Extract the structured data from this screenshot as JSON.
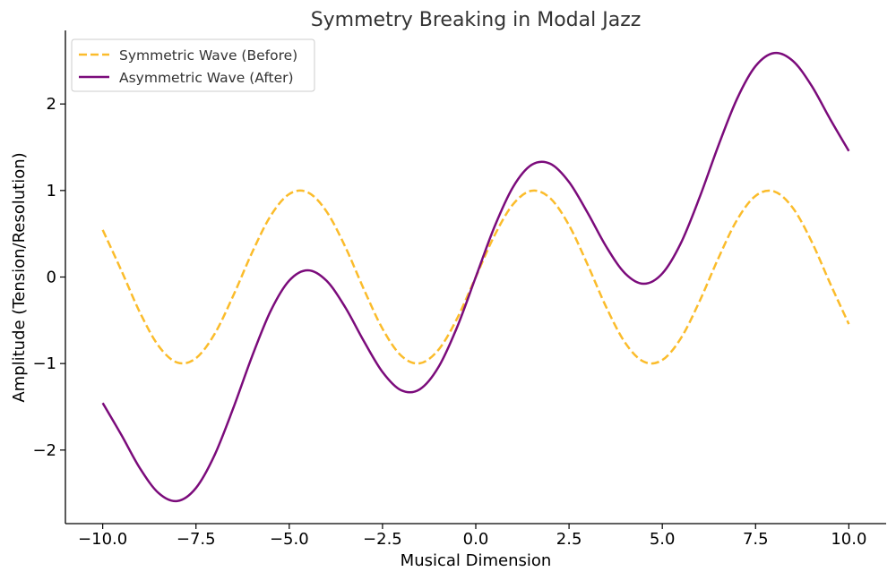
{
  "chart_data": {
    "type": "line",
    "title": "Symmetry Breaking in Modal Jazz",
    "xlabel": "Musical Dimension",
    "ylabel": "Amplitude (Tension/Resolution)",
    "xlim": [
      -11.0,
      11.0
    ],
    "ylim": [
      -2.85,
      2.85
    ],
    "xticks": [
      -10.0,
      -7.5,
      -5.0,
      -2.5,
      0.0,
      2.5,
      5.0,
      7.5,
      10.0
    ],
    "xtick_labels": [
      "−10.0",
      "−7.5",
      "−5.0",
      "−2.5",
      "0.0",
      "2.5",
      "5.0",
      "7.5",
      "10.0"
    ],
    "yticks": [
      -2,
      -1,
      0,
      1,
      2
    ],
    "ytick_labels": [
      "−2",
      "−1",
      "0",
      "1",
      "2"
    ],
    "grid": false,
    "legend_position": "top-left",
    "series": [
      {
        "name": "Symmetric Wave (Before)",
        "color": "#FBBC2B",
        "style": "dashed",
        "x": [
          -10.0,
          -9.5,
          -9.0,
          -8.5,
          -8.0,
          -7.5,
          -7.0,
          -6.5,
          -6.0,
          -5.5,
          -5.0,
          -4.5,
          -4.0,
          -3.5,
          -3.0,
          -2.5,
          -2.0,
          -1.5,
          -1.0,
          -0.5,
          0.0,
          0.5,
          1.0,
          1.5,
          2.0,
          2.5,
          3.0,
          3.5,
          4.0,
          4.5,
          5.0,
          5.5,
          6.0,
          6.5,
          7.0,
          7.5,
          8.0,
          8.5,
          9.0,
          9.5,
          10.0
        ],
        "values": [
          0.544,
          0.075,
          -0.412,
          -0.798,
          -0.989,
          -0.938,
          -0.657,
          -0.215,
          0.279,
          0.706,
          0.959,
          0.978,
          0.757,
          0.351,
          -0.141,
          -0.598,
          -0.909,
          -0.997,
          -0.841,
          -0.479,
          0.0,
          0.479,
          0.841,
          0.997,
          0.909,
          0.598,
          0.141,
          -0.351,
          -0.757,
          -0.978,
          -0.959,
          -0.706,
          -0.279,
          0.215,
          0.657,
          0.938,
          0.989,
          0.798,
          0.412,
          -0.075,
          -0.544
        ]
      },
      {
        "name": "Asymmetric Wave (After)",
        "color": "#7B0B7B",
        "style": "solid",
        "x": [
          -10.0,
          -9.5,
          -9.0,
          -8.5,
          -8.0,
          -7.5,
          -7.0,
          -6.5,
          -6.0,
          -5.5,
          -5.0,
          -4.5,
          -4.0,
          -3.5,
          -3.0,
          -2.5,
          -2.0,
          -1.5,
          -1.0,
          -0.5,
          0.0,
          0.5,
          1.0,
          1.5,
          2.0,
          2.5,
          3.0,
          3.5,
          4.0,
          4.5,
          5.0,
          5.5,
          6.0,
          6.5,
          7.0,
          7.5,
          8.0,
          8.5,
          9.0,
          9.5,
          10.0
        ],
        "values": [
          -1.456,
          -1.825,
          -2.212,
          -2.498,
          -2.589,
          -2.438,
          -2.057,
          -1.515,
          -0.921,
          -0.394,
          -0.041,
          0.078,
          -0.043,
          -0.349,
          -0.741,
          -1.098,
          -1.309,
          -1.297,
          -1.041,
          -0.579,
          0.0,
          0.579,
          1.041,
          1.297,
          1.309,
          1.098,
          0.741,
          0.349,
          0.043,
          -0.078,
          0.041,
          0.394,
          0.921,
          1.515,
          2.057,
          2.438,
          2.589,
          2.498,
          2.212,
          1.825,
          1.456
        ]
      }
    ]
  }
}
